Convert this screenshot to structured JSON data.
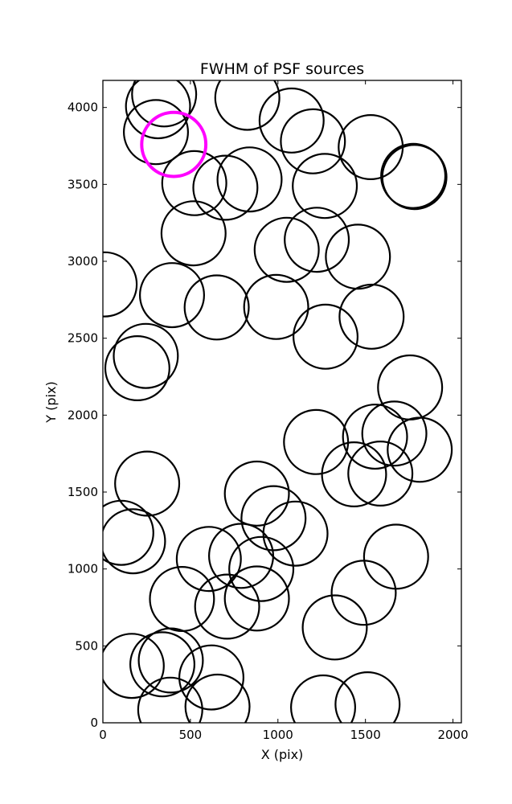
{
  "chart_data": {
    "type": "scatter",
    "title": "FWHM of PSF sources",
    "xlabel": "X (pix)",
    "ylabel": "Y (pix)",
    "xlim": [
      0,
      2048
    ],
    "ylim": [
      0,
      4176
    ],
    "xticks": [
      0,
      500,
      1000,
      1500,
      2000
    ],
    "yticks": [
      0,
      500,
      1000,
      1500,
      2000,
      2500,
      3000,
      3500,
      4000
    ],
    "marker": "circle",
    "radius_data_units": 183,
    "grid": false,
    "series": [
      {
        "color": "#000000",
        "x": [
          350,
          315,
          303,
          825,
          1078,
          1200,
          1530,
          1773,
          1780,
          522,
          700,
          838,
          1268,
          518,
          1050,
          1222,
          1457,
          10,
          395,
          650,
          990,
          1272,
          1535,
          245,
          197,
          1755,
          1218,
          1555,
          1665,
          1810,
          1435,
          1585,
          253,
          880,
          975,
          105,
          172,
          1100,
          605,
          790,
          905,
          1675,
          452,
          710,
          880,
          1490,
          1325,
          165,
          340,
          388,
          620,
          385,
          655,
          1258,
          1512
        ],
        "y": [
          4085,
          4008,
          3840,
          4063,
          3915,
          3780,
          3742,
          3555,
          3548,
          3508,
          3478,
          3532,
          3490,
          3182,
          3075,
          3140,
          3030,
          2850,
          2780,
          2700,
          2703,
          2510,
          2640,
          2385,
          2305,
          2180,
          1825,
          1860,
          1880,
          1775,
          1615,
          1620,
          1555,
          1490,
          1330,
          1235,
          1180,
          1230,
          1065,
          1085,
          1000,
          1080,
          805,
          755,
          808,
          845,
          620,
          370,
          380,
          405,
          295,
          85,
          105,
          100,
          120
        ]
      },
      {
        "color": "#ff00ff",
        "x": [
          405
        ],
        "y": [
          3760
        ]
      }
    ]
  }
}
